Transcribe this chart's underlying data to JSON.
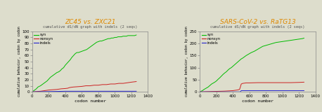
{
  "left": {
    "title": "ZC45 vs. ZXC21",
    "subtitle": "cumulative dS/dN graph with indels (2 seqs)",
    "title_color": "#dd8800",
    "subtitle_color": "#555555",
    "xlabel": "codon number",
    "ylabel": "cumulative behavior, codon by codon",
    "xlim": [
      0,
      1400
    ],
    "ylim": [
      0,
      100
    ],
    "yticks": [
      0,
      10,
      20,
      30,
      40,
      50,
      60,
      70,
      80,
      90,
      100
    ],
    "xticks": [
      0,
      200,
      400,
      600,
      800,
      1000,
      1200,
      1400
    ],
    "legend_labels": [
      "syn",
      "nonsyn",
      "indels"
    ],
    "legend_colors": [
      "#00bb00",
      "#cc2222",
      "#2222cc"
    ],
    "syn_x": [
      0,
      30,
      50,
      70,
      100,
      120,
      140,
      160,
      180,
      200,
      220,
      240,
      260,
      280,
      300,
      320,
      340,
      360,
      380,
      400,
      420,
      440,
      460,
      480,
      500,
      520,
      540,
      560,
      580,
      600,
      620,
      640,
      660,
      680,
      700,
      720,
      740,
      760,
      780,
      800,
      820,
      840,
      860,
      880,
      900,
      920,
      940,
      960,
      980,
      1000,
      1020,
      1040,
      1060,
      1080,
      1100,
      1120,
      1140,
      1160,
      1180,
      1200,
      1220,
      1240,
      1260
    ],
    "syn_y": [
      0,
      3,
      5,
      8,
      10,
      12,
      14,
      16,
      18,
      21,
      24,
      26,
      28,
      30,
      32,
      33,
      35,
      38,
      40,
      44,
      47,
      50,
      53,
      57,
      60,
      63,
      65,
      65,
      66,
      67,
      68,
      69,
      70,
      72,
      74,
      76,
      78,
      80,
      82,
      83,
      84,
      84,
      85,
      86,
      87,
      88,
      88,
      89,
      89,
      90,
      90,
      91,
      91,
      91,
      92,
      92,
      92,
      93,
      93,
      93,
      93,
      93,
      94
    ],
    "nonsyn_x": [
      0,
      50,
      100,
      150,
      200,
      250,
      300,
      350,
      400,
      430,
      450,
      470,
      500,
      550,
      600,
      650,
      700,
      750,
      800,
      850,
      900,
      950,
      1000,
      1050,
      1100,
      1150,
      1200,
      1260
    ],
    "nonsyn_y": [
      0,
      0.5,
      1,
      2,
      3,
      3.5,
      4,
      5,
      5.5,
      6,
      7,
      7.5,
      8,
      8.5,
      9,
      10,
      10,
      11,
      11,
      12,
      12,
      13,
      13,
      14,
      14,
      15,
      16,
      17
    ],
    "indels_x": [
      0,
      100,
      200,
      300,
      400,
      500,
      600,
      700,
      800,
      900,
      1000,
      1100,
      1200,
      1260
    ],
    "indels_y": [
      0,
      0.3,
      0.5,
      0.7,
      1,
      1,
      1,
      1,
      1,
      1,
      1,
      1,
      1,
      1
    ]
  },
  "right": {
    "title": "SARS-CoV-2 vs. RaTG13",
    "subtitle": "cumulative dS/dN graph with indels (2 seqs)",
    "title_color": "#dd8800",
    "subtitle_color": "#555555",
    "xlabel": "codon number",
    "ylabel": "cumulative behavior, codon by codon",
    "xlim": [
      0,
      1400
    ],
    "ylim": [
      0,
      250
    ],
    "yticks": [
      0,
      50,
      100,
      150,
      200,
      250
    ],
    "xticks": [
      0,
      200,
      400,
      600,
      800,
      1000,
      1200,
      1400
    ],
    "legend_labels": [
      "syn",
      "nonsyn",
      "indels"
    ],
    "legend_colors": [
      "#00bb00",
      "#cc2222",
      "#2222cc"
    ],
    "syn_x": [
      0,
      30,
      50,
      70,
      100,
      120,
      140,
      160,
      180,
      200,
      220,
      240,
      260,
      280,
      300,
      320,
      340,
      360,
      380,
      400,
      420,
      440,
      460,
      480,
      500,
      520,
      540,
      560,
      580,
      600,
      620,
      640,
      660,
      680,
      700,
      720,
      740,
      760,
      800,
      840,
      880,
      920,
      960,
      1000,
      1040,
      1080,
      1120,
      1160,
      1200,
      1240,
      1260
    ],
    "syn_y": [
      0,
      5,
      10,
      14,
      20,
      26,
      32,
      36,
      40,
      45,
      52,
      58,
      65,
      72,
      78,
      83,
      90,
      96,
      100,
      106,
      112,
      118,
      124,
      130,
      136,
      140,
      145,
      150,
      154,
      158,
      162,
      165,
      168,
      172,
      176,
      180,
      184,
      188,
      192,
      196,
      200,
      204,
      206,
      208,
      210,
      212,
      214,
      216,
      218,
      220,
      222
    ],
    "nonsyn_x": [
      0,
      50,
      100,
      150,
      200,
      250,
      300,
      350,
      400,
      420,
      440,
      460,
      480,
      490,
      500,
      510,
      520,
      540,
      560,
      600,
      700,
      800,
      900,
      1000,
      1100,
      1200,
      1260
    ],
    "nonsyn_y": [
      0,
      0.5,
      1,
      1.5,
      2,
      2.5,
      3,
      4,
      5,
      6,
      7,
      8,
      10,
      20,
      32,
      34,
      35,
      36,
      37,
      37,
      38,
      38,
      38,
      38,
      38,
      39,
      40
    ],
    "indels_x": [
      0,
      200,
      300,
      400,
      440,
      460,
      480,
      490,
      500,
      520,
      600,
      700,
      800,
      1000,
      1200,
      1260
    ],
    "indels_y": [
      0,
      0,
      0,
      0,
      0,
      0,
      0,
      0,
      5,
      5,
      5,
      5,
      5,
      5,
      5,
      5
    ]
  },
  "bg_color": "#ddddcc"
}
